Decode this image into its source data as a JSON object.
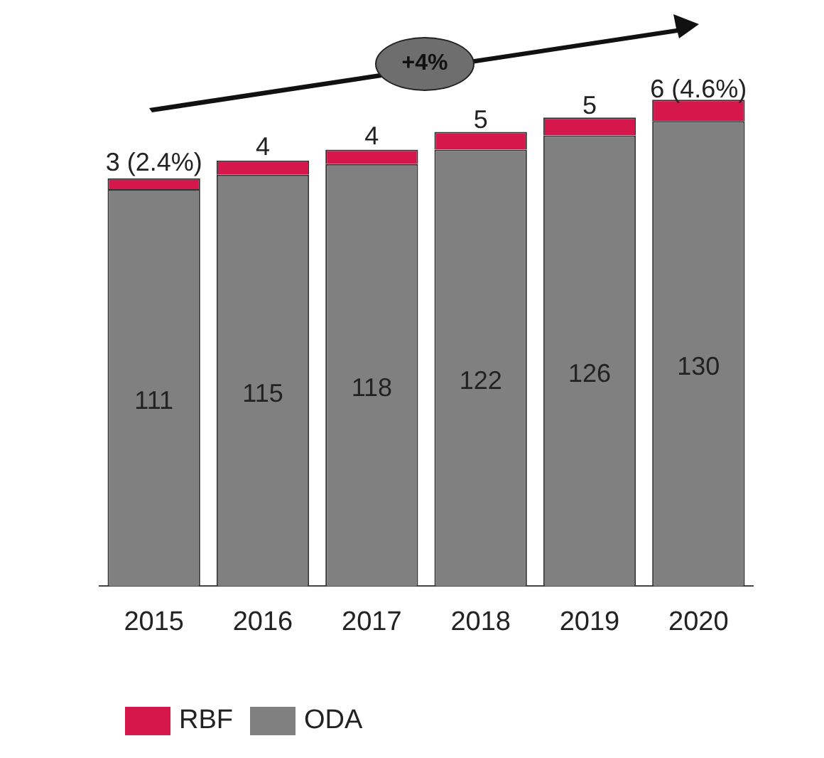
{
  "chart_data": {
    "type": "bar",
    "stacked": true,
    "categories": [
      "2015",
      "2016",
      "2017",
      "2018",
      "2019",
      "2020"
    ],
    "series": [
      {
        "name": "ODA",
        "color": "#808080",
        "values": [
          111,
          115,
          118,
          122,
          126,
          130
        ],
        "data_labels": true
      },
      {
        "name": "RBF",
        "color": "#d6174b",
        "values": [
          3,
          4,
          4,
          5,
          5,
          6
        ],
        "value_labels": [
          "3 (2.4%)",
          "4",
          "4",
          "5",
          "5",
          "6 (4.6%)"
        ]
      }
    ],
    "annotations": [
      "+4%"
    ],
    "legend": "bottom left",
    "grid": false
  }
}
